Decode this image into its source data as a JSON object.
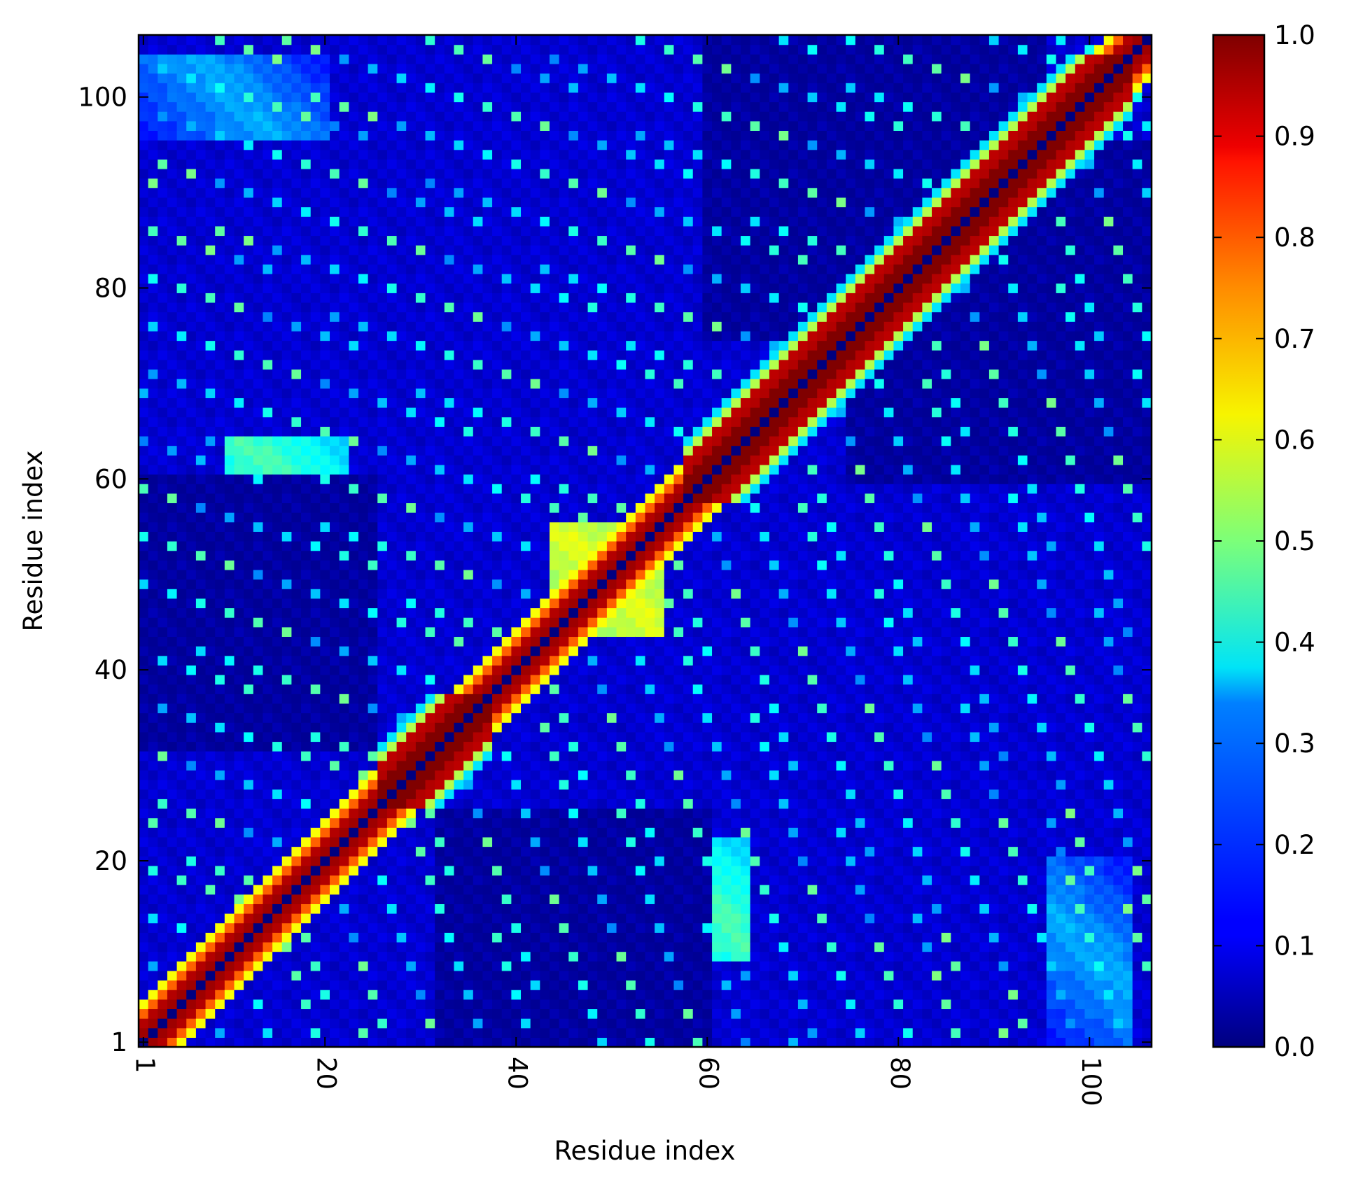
{
  "chart_data": {
    "type": "heatmap",
    "title": "",
    "xlabel": "Residue index",
    "ylabel": "Residue index",
    "n_residues": 106,
    "xlim": [
      1,
      106
    ],
    "ylim": [
      1,
      106
    ],
    "x_ticks": [
      1,
      20,
      40,
      60,
      80,
      100
    ],
    "y_ticks": [
      1,
      20,
      40,
      60,
      80,
      100
    ],
    "x_tick_labels": [
      "1",
      "20",
      "40",
      "60",
      "80",
      "100"
    ],
    "y_tick_labels": [
      "1",
      "20",
      "40",
      "60",
      "80",
      "100"
    ],
    "colormap": "jet",
    "colorbar": {
      "range": [
        0.0,
        1.0
      ],
      "ticks": [
        0.0,
        0.1,
        0.2,
        0.3,
        0.4,
        0.5,
        0.6,
        0.7,
        0.8,
        0.9,
        1.0
      ],
      "tick_labels": [
        "0.0",
        "0.1",
        "0.2",
        "0.3",
        "0.4",
        "0.5",
        "0.6",
        "0.7",
        "0.8",
        "0.9",
        "1.0"
      ]
    },
    "matrix_description_values": {
      "background": 0.08,
      "diagonal_self": 0.0,
      "near_diagonal": 0.97,
      "diagonal_band_decay": [
        0.97,
        0.95,
        0.88,
        0.72,
        0.45
      ],
      "strong_helix_segments": [
        [
          26,
          37
        ],
        [
          58,
          104
        ]
      ],
      "offdiag_beta_blobs": [
        {
          "i": [
            10,
            22
          ],
          "j": [
            55,
            64
          ],
          "value": 0.45
        },
        {
          "i": [
            55,
            64
          ],
          "j": [
            10,
            22
          ],
          "value": 0.45
        },
        {
          "i": [
            44,
            55
          ],
          "j": [
            44,
            55
          ],
          "value": 0.6
        },
        {
          "i": [
            96,
            104
          ],
          "j": [
            1,
            20
          ],
          "value": 0.3
        },
        {
          "i": [
            1,
            20
          ],
          "j": [
            96,
            104
          ],
          "value": 0.3
        }
      ],
      "low_regions": [
        {
          "i": [
            32,
            60
          ],
          "j": [
            1,
            25
          ],
          "value": 0.03
        },
        {
          "i": [
            1,
            25
          ],
          "j": [
            32,
            60
          ],
          "value": 0.03
        },
        {
          "i": [
            60,
            95
          ],
          "j": [
            75,
            106
          ],
          "value": 0.03
        },
        {
          "i": [
            75,
            106
          ],
          "j": [
            60,
            95
          ],
          "value": 0.03
        }
      ]
    }
  }
}
